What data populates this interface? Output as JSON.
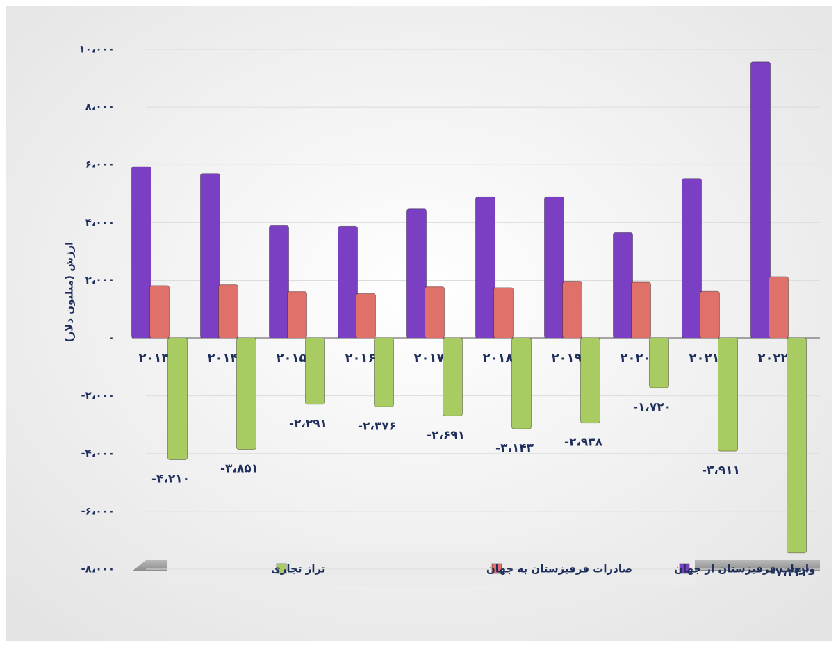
{
  "chart_data": {
    "type": "bar",
    "y_label": "ارزش (میلیون دلار)",
    "categories": [
      "۲۰۱۳",
      "۲۰۱۴",
      "۲۰۱۵",
      "۲۰۱۶",
      "۲۰۱۷",
      "۲۰۱۸",
      "۲۰۱۹",
      "۲۰۲۰",
      "۲۰۲۱",
      "۲۰۲۲"
    ],
    "series": [
      {
        "name": "واردات قرقیزستان از جهان",
        "color": "#7b3fc4",
        "values": [
          5930,
          5700,
          3900,
          3880,
          4470,
          4890,
          4890,
          3660,
          5530,
          9570
        ]
      },
      {
        "name": "صادرات قرقیزستان به جهان",
        "color": "#e0706a",
        "values": [
          1820,
          1850,
          1610,
          1540,
          1780,
          1750,
          1950,
          1940,
          1620,
          2130
        ]
      },
      {
        "name": "تراز تجاری",
        "color": "#a9cc62",
        "values": [
          -4210,
          -3851,
          -2291,
          -2376,
          -2691,
          -3143,
          -2938,
          -1720,
          -3911,
          -7442
        ],
        "value_labels": [
          "-۴،۲۱۰",
          "-۳،۸۵۱",
          "-۲،۲۹۱",
          "-۲،۳۷۶",
          "-۲،۶۹۱",
          "-۳،۱۴۳",
          "-۲،۹۳۸",
          "-۱،۷۲۰",
          "-۳،۹۱۱",
          "-۷،۴۴۲"
        ]
      }
    ],
    "ylim": [
      -8000,
      10000
    ],
    "yticks": [
      {
        "value": -8000,
        "label": "-۸،۰۰۰"
      },
      {
        "value": -6000,
        "label": "-۶،۰۰۰"
      },
      {
        "value": -4000,
        "label": "-۴،۰۰۰"
      },
      {
        "value": -2000,
        "label": "-۲،۰۰۰"
      },
      {
        "value": 0,
        "label": "۰"
      },
      {
        "value": 2000,
        "label": "۲،۰۰۰"
      },
      {
        "value": 4000,
        "label": "۴،۰۰۰"
      },
      {
        "value": 6000,
        "label": "۶،۰۰۰"
      },
      {
        "value": 8000,
        "label": "۸،۰۰۰"
      },
      {
        "value": 10000,
        "label": "۱۰،۰۰۰"
      }
    ],
    "grid": true
  }
}
